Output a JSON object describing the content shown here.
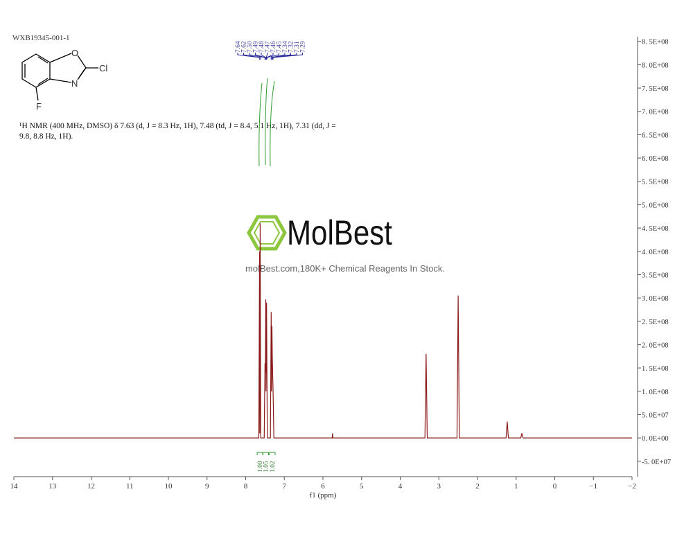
{
  "chart_data": {
    "type": "line",
    "sample_id": "WXB19345-001-1",
    "nmr_text": "¹H NMR (400 MHz, DMSO) δ 7.63 (d, J = 8.3 Hz, 1H), 7.48 (td, J = 8.4, 5.1 Hz, 1H), 7.31 (dd, J = 9.8, 8.8 Hz, 1H).",
    "structure_labels": [
      "O",
      "Cl",
      "N",
      "F"
    ],
    "watermark": {
      "brand": "MolBest",
      "tagline": "molBest.com,180K+ Chemical Reagents In Stock."
    },
    "peak_labels": [
      "7.64",
      "7.62",
      "7.50",
      "7.49",
      "7.48",
      "7.47",
      "7.46",
      "7.45",
      "7.34",
      "7.32",
      "7.31",
      "7.29"
    ],
    "integrals": [
      "1.00",
      "1.05",
      "1.02"
    ],
    "xlabel": "f1 (ppm)",
    "color": "#8b1a1a",
    "x": [
      14,
      7.7,
      7.66,
      7.64,
      7.635,
      7.625,
      7.61,
      7.52,
      7.5,
      7.49,
      7.48,
      7.475,
      7.46,
      7.45,
      7.44,
      7.36,
      7.34,
      7.33,
      7.32,
      7.31,
      7.29,
      7.27,
      5.76,
      5.75,
      5.74,
      3.36,
      3.33,
      3.3,
      2.53,
      2.5,
      2.47,
      1.26,
      1.23,
      1.2,
      0.88,
      0.85,
      0.82,
      -2
    ],
    "values": [
      0,
      0,
      0,
      400000000,
      10000000,
      460000000,
      0,
      0,
      160000000,
      140000000,
      297000000,
      100000000,
      290000000,
      150000000,
      0,
      0,
      270000000,
      100000000,
      240000000,
      170000000,
      100000000,
      0,
      0,
      10000000,
      0,
      0,
      180000000,
      0,
      0,
      305000000,
      0,
      0,
      35000000,
      0,
      0,
      10000000,
      0,
      0
    ],
    "xlim": [
      14,
      -2
    ],
    "xticks": [
      14,
      13,
      12,
      11,
      10,
      9,
      8,
      7,
      6,
      5,
      4,
      3,
      2,
      1,
      0,
      {
        "value": -1,
        "label": "−1"
      },
      {
        "value": -2,
        "label": "−2"
      }
    ],
    "ylim": [
      -83000000,
      860000000
    ],
    "yticks": [
      {
        "value": 850000000,
        "label": "8. 5E+08"
      },
      {
        "value": 800000000,
        "label": "8. 0E+08"
      },
      {
        "value": 750000000,
        "label": "7. 5E+08"
      },
      {
        "value": 700000000,
        "label": "7. 0E+08"
      },
      {
        "value": 650000000,
        "label": "6. 5E+08"
      },
      {
        "value": 600000000,
        "label": "6. 0E+08"
      },
      {
        "value": 550000000,
        "label": "5. 5E+08"
      },
      {
        "value": 500000000,
        "label": "5. 0E+08"
      },
      {
        "value": 450000000,
        "label": "4. 5E+08"
      },
      {
        "value": 400000000,
        "label": "4. 0E+08"
      },
      {
        "value": 350000000,
        "label": "3. 5E+08"
      },
      {
        "value": 300000000,
        "label": "3. 0E+08"
      },
      {
        "value": 250000000,
        "label": "2. 5E+08"
      },
      {
        "value": 200000000,
        "label": "2. 0E+08"
      },
      {
        "value": 150000000,
        "label": "1. 5E+08"
      },
      {
        "value": 100000000,
        "label": "1. 0E+08"
      },
      {
        "value": 50000000,
        "label": "5. 0E+07"
      },
      {
        "value": 0,
        "label": "0. 0E+00"
      },
      {
        "value": -50000000,
        "label": "-5. 0E+07"
      }
    ]
  }
}
